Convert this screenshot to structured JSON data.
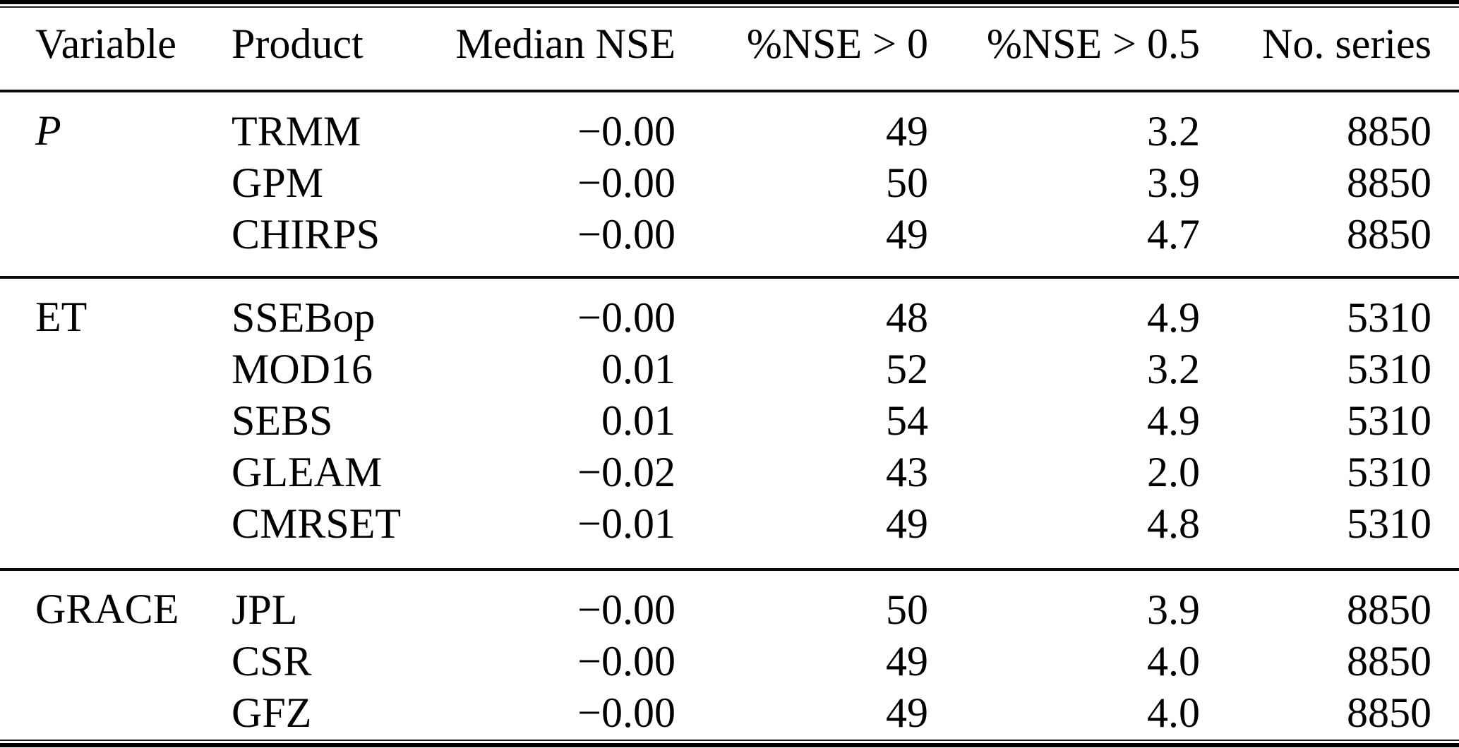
{
  "table": {
    "columns": [
      {
        "label": "Variable",
        "align": "left"
      },
      {
        "label": "Product",
        "align": "left"
      },
      {
        "label": "Median NSE",
        "align": "right"
      },
      {
        "label": "%NSE > 0",
        "align": "right"
      },
      {
        "label": "%NSE > 0.5",
        "align": "right"
      },
      {
        "label": "No. series",
        "align": "right"
      }
    ],
    "groups": [
      {
        "id": "p",
        "variable": "P",
        "variable_italic": true,
        "rows": [
          {
            "product": "TRMM",
            "median_nse": "−0.00",
            "pct_nse_gt_0": "49",
            "pct_nse_gt_05": "3.2",
            "no_series": "8850"
          },
          {
            "product": "GPM",
            "median_nse": "−0.00",
            "pct_nse_gt_0": "50",
            "pct_nse_gt_05": "3.9",
            "no_series": "8850"
          },
          {
            "product": "CHIRPS",
            "median_nse": "−0.00",
            "pct_nse_gt_0": "49",
            "pct_nse_gt_05": "4.7",
            "no_series": "8850"
          }
        ]
      },
      {
        "id": "et",
        "variable": "ET",
        "variable_italic": false,
        "rows": [
          {
            "product": "SSEBop",
            "median_nse": "−0.00",
            "pct_nse_gt_0": "48",
            "pct_nse_gt_05": "4.9",
            "no_series": "5310"
          },
          {
            "product": "MOD16",
            "median_nse": "0.01",
            "pct_nse_gt_0": "52",
            "pct_nse_gt_05": "3.2",
            "no_series": "5310"
          },
          {
            "product": "SEBS",
            "median_nse": "0.01",
            "pct_nse_gt_0": "54",
            "pct_nse_gt_05": "4.9",
            "no_series": "5310"
          },
          {
            "product": "GLEAM",
            "median_nse": "−0.02",
            "pct_nse_gt_0": "43",
            "pct_nse_gt_05": "2.0",
            "no_series": "5310"
          },
          {
            "product": "CMRSET",
            "median_nse": "−0.01",
            "pct_nse_gt_0": "49",
            "pct_nse_gt_05": "4.8",
            "no_series": "5310"
          }
        ]
      },
      {
        "id": "grace",
        "variable": "GRACE",
        "variable_italic": false,
        "rows": [
          {
            "product": "JPL",
            "median_nse": "−0.00",
            "pct_nse_gt_0": "50",
            "pct_nse_gt_05": "3.9",
            "no_series": "8850"
          },
          {
            "product": "CSR",
            "median_nse": "−0.00",
            "pct_nse_gt_0": "49",
            "pct_nse_gt_05": "4.0",
            "no_series": "8850"
          },
          {
            "product": "GFZ",
            "median_nse": "−0.00",
            "pct_nse_gt_0": "49",
            "pct_nse_gt_05": "4.0",
            "no_series": "8850"
          }
        ]
      }
    ],
    "colors": {
      "text": "#000000",
      "rule": "#0a0a0a",
      "background": "#ffffff"
    }
  }
}
